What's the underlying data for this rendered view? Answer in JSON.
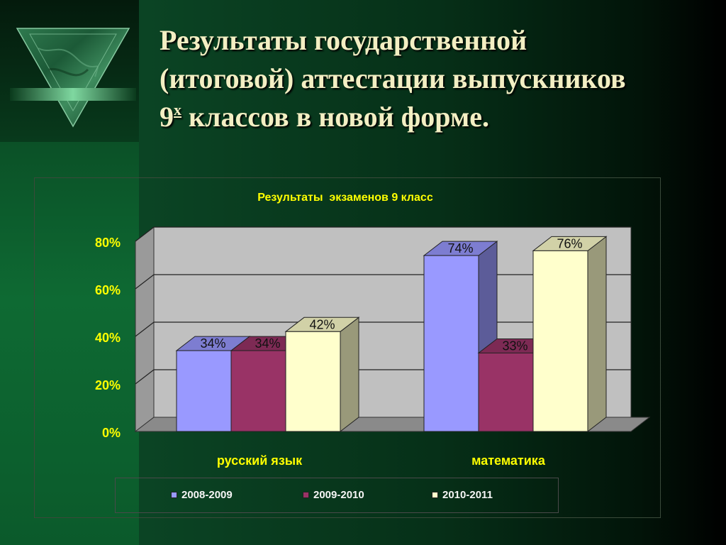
{
  "slide": {
    "title_line1": "Результаты государственной",
    "title_line2": "(итоговой) аттестации выпускников",
    "title_line3_num": "9",
    "title_line3_sup": "х",
    "title_line3_rest": " классов в новой форме."
  },
  "colors": {
    "series_2008_2009": "#9999ff",
    "series_2009_2010": "#993366",
    "series_2010_2011": "#ffffcc",
    "title_text": "#f3efc3",
    "axis_text": "#ffff00",
    "plot_wall": "#c0c0c0"
  },
  "chart_data": {
    "type": "bar",
    "title": "Результаты  экзаменов 9 класс",
    "categories": [
      "русский язык",
      "математика"
    ],
    "series": [
      {
        "name": "2008-2009",
        "values": [
          34,
          74
        ],
        "labels": [
          "34%",
          "74%"
        ]
      },
      {
        "name": "2009-2010",
        "values": [
          34,
          33
        ],
        "labels": [
          "34%",
          "33%"
        ]
      },
      {
        "name": "2010-2011",
        "values": [
          42,
          76
        ],
        "labels": [
          "42%",
          "76%"
        ]
      }
    ],
    "ylim": [
      0,
      80
    ],
    "yticks": [
      0,
      20,
      40,
      60,
      80
    ],
    "ytick_labels": [
      "0%",
      "20%",
      "40%",
      "60%",
      "80%"
    ],
    "grid": true,
    "legend_position": "bottom",
    "style": "3d-clustered-column"
  }
}
